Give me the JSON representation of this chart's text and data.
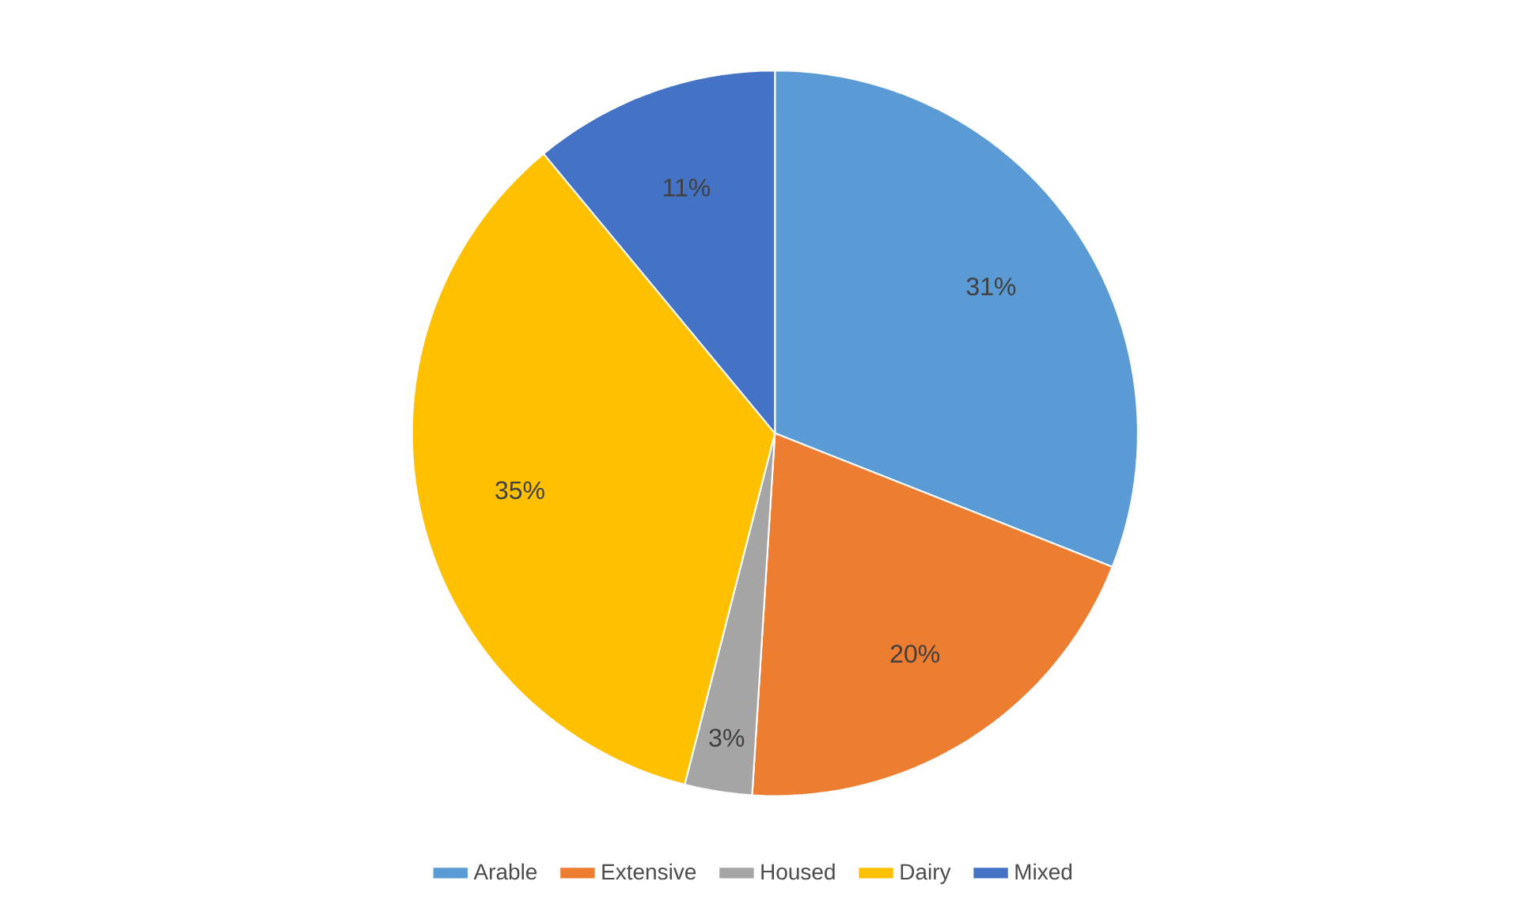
{
  "chart_data": {
    "type": "pie",
    "categories": [
      "Arable",
      "Extensive",
      "Housed",
      "Dairy",
      "Mixed"
    ],
    "values": [
      31,
      20,
      3,
      35,
      11
    ],
    "colors": [
      "#5b9bd5",
      "#ed7d31",
      "#a5a5a5",
      "#ffc000",
      "#4472c4"
    ],
    "value_labels": [
      "31%",
      "20%",
      "3%",
      "35%",
      "11%"
    ],
    "legend": "bottom"
  }
}
